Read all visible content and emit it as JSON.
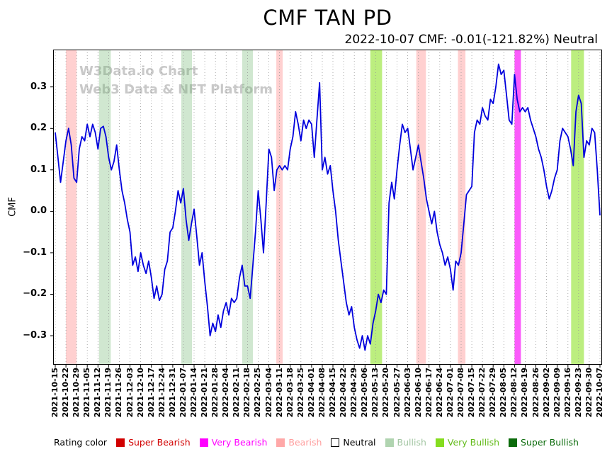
{
  "watermark": {
    "line1": "W3Data.io Chart",
    "line2": "Web3 Data & NFT Platform"
  },
  "legend": {
    "title": "Rating color",
    "items": [
      {
        "label": "Super Bearish",
        "color": "#d10000",
        "text_color": "#d10000"
      },
      {
        "label": "Very Bearish",
        "color": "#ff00ff",
        "text_color": "#ff00ff"
      },
      {
        "label": "Bearish",
        "color": "#ffa8a8",
        "text_color": "#ff9e9e"
      },
      {
        "label": "Neutral",
        "color": "#ffffff",
        "text_color": "#000000",
        "border": "#000000"
      },
      {
        "label": "Bullish",
        "color": "#b0d4b0",
        "text_color": "#a3c6a3"
      },
      {
        "label": "Very Bullish",
        "color": "#85dd1f",
        "text_color": "#63bb1a"
      },
      {
        "label": "Super Bullish",
        "color": "#0b6b0b",
        "text_color": "#0b6b0b"
      }
    ]
  },
  "chart_data": {
    "type": "line",
    "title": "CMF TAN PD",
    "subtitle": "2022-10-07 CMF: -0.01(-121.82%) Neutral",
    "xlabel": "",
    "ylabel": "CMF",
    "ylim": [
      -0.37,
      0.39
    ],
    "grid": "vertical-dotted",
    "legend_position": "bottom",
    "yticks": [
      0.3,
      0.2,
      0.1,
      0.0,
      -0.1,
      -0.2,
      -0.3
    ],
    "ytick_labels": [
      "0.3",
      "0.2",
      "0.1",
      "0.0",
      "−0.1",
      "−0.2",
      "−0.3"
    ],
    "x_labels": [
      "2021-10-15",
      "2021-10-22",
      "2021-10-29",
      "2021-11-05",
      "2021-11-12",
      "2021-11-19",
      "2021-11-26",
      "2021-12-03",
      "2021-12-10",
      "2021-12-17",
      "2021-12-24",
      "2021-12-31",
      "2022-01-07",
      "2022-01-14",
      "2022-01-21",
      "2022-01-28",
      "2022-02-04",
      "2022-02-11",
      "2022-02-18",
      "2022-02-25",
      "2022-03-04",
      "2022-03-11",
      "2022-03-18",
      "2022-03-25",
      "2022-04-01",
      "2022-04-08",
      "2022-04-15",
      "2022-04-22",
      "2022-04-29",
      "2022-05-06",
      "2022-05-13",
      "2022-05-20",
      "2022-05-27",
      "2022-06-03",
      "2022-06-10",
      "2022-06-17",
      "2022-06-24",
      "2022-07-01",
      "2022-07-08",
      "2022-07-15",
      "2022-07-22",
      "2022-07-29",
      "2022-08-05",
      "2022-08-12",
      "2022-08-19",
      "2022-08-26",
      "2022-09-02",
      "2022-09-09",
      "2022-09-16",
      "2022-09-23",
      "2022-09-30",
      "2022-10-07"
    ],
    "points_per_week": 4,
    "series": [
      {
        "name": "CMF",
        "color": "#0000dd",
        "values": [
          0.19,
          0.13,
          0.07,
          0.12,
          0.17,
          0.2,
          0.16,
          0.08,
          0.07,
          0.15,
          0.18,
          0.17,
          0.21,
          0.18,
          0.21,
          0.19,
          0.15,
          0.2,
          0.205,
          0.18,
          0.13,
          0.1,
          0.12,
          0.16,
          0.1,
          0.05,
          0.02,
          -0.02,
          -0.05,
          -0.13,
          -0.11,
          -0.145,
          -0.1,
          -0.13,
          -0.15,
          -0.12,
          -0.16,
          -0.21,
          -0.18,
          -0.215,
          -0.2,
          -0.14,
          -0.12,
          -0.05,
          -0.04,
          0.0,
          0.05,
          0.02,
          0.055,
          -0.02,
          -0.07,
          -0.03,
          0.005,
          -0.06,
          -0.13,
          -0.1,
          -0.17,
          -0.23,
          -0.3,
          -0.27,
          -0.29,
          -0.25,
          -0.28,
          -0.24,
          -0.22,
          -0.25,
          -0.21,
          -0.22,
          -0.21,
          -0.16,
          -0.13,
          -0.18,
          -0.18,
          -0.21,
          -0.13,
          -0.05,
          0.05,
          -0.02,
          -0.1,
          0.02,
          0.15,
          0.13,
          0.05,
          0.1,
          0.11,
          0.1,
          0.11,
          0.1,
          0.15,
          0.18,
          0.24,
          0.21,
          0.17,
          0.22,
          0.2,
          0.22,
          0.21,
          0.13,
          0.22,
          0.31,
          0.1,
          0.13,
          0.09,
          0.11,
          0.05,
          0.0,
          -0.07,
          -0.12,
          -0.17,
          -0.22,
          -0.25,
          -0.23,
          -0.28,
          -0.31,
          -0.33,
          -0.3,
          -0.335,
          -0.3,
          -0.32,
          -0.27,
          -0.24,
          -0.2,
          -0.22,
          -0.19,
          -0.2,
          0.02,
          0.07,
          0.03,
          0.1,
          0.16,
          0.21,
          0.19,
          0.2,
          0.15,
          0.1,
          0.13,
          0.16,
          0.12,
          0.08,
          0.03,
          0.0,
          -0.03,
          0.0,
          -0.05,
          -0.08,
          -0.1,
          -0.13,
          -0.11,
          -0.14,
          -0.19,
          -0.12,
          -0.13,
          -0.1,
          -0.03,
          0.04,
          0.05,
          0.06,
          0.19,
          0.22,
          0.21,
          0.25,
          0.23,
          0.22,
          0.27,
          0.26,
          0.3,
          0.355,
          0.33,
          0.34,
          0.28,
          0.22,
          0.21,
          0.33,
          0.27,
          0.24,
          0.25,
          0.24,
          0.25,
          0.22,
          0.2,
          0.18,
          0.15,
          0.13,
          0.1,
          0.06,
          0.03,
          0.05,
          0.08,
          0.1,
          0.17,
          0.2,
          0.19,
          0.18,
          0.15,
          0.11,
          0.24,
          0.28,
          0.26,
          0.13,
          0.17,
          0.16,
          0.2,
          0.19,
          0.1,
          -0.01
        ]
      }
    ],
    "bands": [
      {
        "start": 1.0,
        "end": 2.0,
        "type": "bearish"
      },
      {
        "start": 4.1,
        "end": 5.2,
        "type": "bullish"
      },
      {
        "start": 11.8,
        "end": 12.8,
        "type": "bullish"
      },
      {
        "start": 17.5,
        "end": 18.5,
        "type": "bullish"
      },
      {
        "start": 20.7,
        "end": 21.3,
        "type": "bearish"
      },
      {
        "start": 29.5,
        "end": 30.6,
        "type": "very_bullish"
      },
      {
        "start": 33.8,
        "end": 34.7,
        "type": "bearish"
      },
      {
        "start": 37.7,
        "end": 38.4,
        "type": "bearish"
      },
      {
        "start": 43.0,
        "end": 43.6,
        "type": "very_bearish"
      },
      {
        "start": 48.3,
        "end": 49.5,
        "type": "very_bullish"
      }
    ],
    "band_colors": {
      "bearish": "rgba(255,120,120,0.35)",
      "bullish": "rgba(110,180,110,0.32)",
      "very_bullish": "rgba(140,225,35,0.58)",
      "very_bearish": "rgba(250,50,250,0.80)"
    }
  }
}
